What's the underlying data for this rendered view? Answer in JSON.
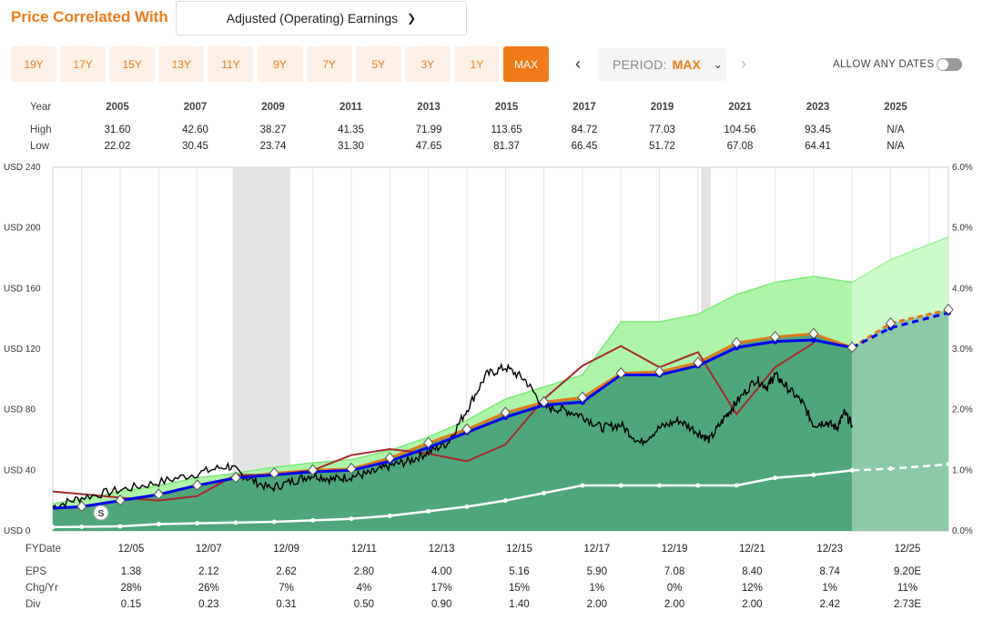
{
  "header": {
    "title": "Price Correlated With",
    "dropdown_value": "Adjusted (Operating) Earnings"
  },
  "ranges": [
    "19Y",
    "17Y",
    "15Y",
    "13Y",
    "11Y",
    "9Y",
    "7Y",
    "5Y",
    "3Y",
    "1Y",
    "MAX"
  ],
  "active_range": "MAX",
  "period": {
    "label": "PERIOD:",
    "value": "MAX"
  },
  "allow_dates": "ALLOW ANY DATES",
  "colors": {
    "accent": "#f07a19",
    "eps_green": "#4ea67a",
    "normal_pe": "#0000ee",
    "price": "#000000",
    "pe_line": "#a52a2a",
    "div_line": "#ffffff"
  },
  "top_table": {
    "year_label": "Year",
    "high_label": "High",
    "low_label": "Low",
    "years": [
      "2005",
      "2007",
      "2009",
      "2011",
      "2013",
      "2015",
      "2017",
      "2019",
      "2021",
      "2023",
      "2025"
    ],
    "high": [
      "31.60",
      "42.60",
      "38.27",
      "41.35",
      "71.99",
      "113.65",
      "84.72",
      "77.03",
      "104.56",
      "93.45",
      "N/A"
    ],
    "low": [
      "22.02",
      "30.45",
      "23.74",
      "31.30",
      "47.65",
      "81.37",
      "66.45",
      "51.72",
      "67.08",
      "64.41",
      "N/A"
    ]
  },
  "bottom_table": {
    "fy_label": "FYDate",
    "eps_label": "EPS",
    "chg_label": "Chg/Yr",
    "div_label": "Div",
    "fy": [
      "12/05",
      "12/07",
      "12/09",
      "12/11",
      "12/13",
      "12/15",
      "12/17",
      "12/19",
      "12/21",
      "12/23",
      "12/25"
    ],
    "eps": [
      "1.38",
      "2.12",
      "2.62",
      "2.80",
      "4.00",
      "5.16",
      "5.90",
      "7.08",
      "8.40",
      "8.74",
      "9.20E"
    ],
    "chg": [
      "28%",
      "26%",
      "7%",
      "4%",
      "17%",
      "15%",
      "1%",
      "0%",
      "12%",
      "1%",
      "11%"
    ],
    "div": [
      "0.15",
      "0.23",
      "0.31",
      "0.50",
      "0.90",
      "1.40",
      "2.00",
      "2.00",
      "2.00",
      "2.42",
      "2.73E"
    ]
  },
  "chart_data": {
    "type": "area",
    "title": "Price Correlated With Adjusted (Operating) Earnings",
    "y_left_ticks": [
      "USD 0",
      "USD 40",
      "USD 80",
      "USD 120",
      "USD 160",
      "USD 200",
      "USD 240"
    ],
    "y_right_ticks": [
      "0.0%",
      "1.0%",
      "2.0%",
      "3.0%",
      "4.0%",
      "5.0%",
      "6.0%"
    ],
    "ylim": [
      0,
      240
    ],
    "y2lim": [
      0,
      6
    ],
    "x_range": [
      2003.25,
      2026.5
    ],
    "recessions": [
      [
        2007.92,
        2009.42
      ],
      [
        2020.08,
        2020.33
      ]
    ],
    "estimate_start": 2024.0,
    "eps_fill": {
      "x": [
        2003.25,
        2004,
        2005,
        2006,
        2007,
        2008,
        2009,
        2010,
        2011,
        2012,
        2013,
        2014,
        2015,
        2016,
        2017,
        2018,
        2019,
        2020,
        2021,
        2022,
        2023,
        2024,
        2025,
        2026.5
      ],
      "values": [
        15,
        16,
        20,
        24,
        30,
        35,
        38,
        40,
        41,
        48,
        58,
        67,
        78,
        85,
        88,
        104,
        105,
        111,
        124,
        128,
        130,
        121,
        137,
        146
      ]
    },
    "normal_pe": {
      "x": [
        2003.25,
        2004,
        2005,
        2006,
        2007,
        2008,
        2009,
        2010,
        2011,
        2012,
        2013,
        2014,
        2015,
        2016,
        2017,
        2018,
        2019,
        2020,
        2021,
        2022,
        2023,
        2024,
        2025,
        2026.5
      ],
      "values": [
        15,
        16,
        20,
        24,
        30,
        35,
        37,
        39,
        40,
        46,
        55,
        65,
        75,
        83,
        85,
        103,
        103,
        109,
        121,
        125,
        126,
        121,
        134,
        144
      ]
    },
    "fast_graph": {
      "x": [
        2003.25,
        2004,
        2005,
        2006,
        2007,
        2008,
        2009,
        2010,
        2011,
        2012,
        2013,
        2014,
        2015,
        2016,
        2017,
        2018,
        2019,
        2020,
        2021,
        2022,
        2023,
        2024,
        2025,
        2026.5
      ],
      "values": [
        18,
        21,
        26,
        30,
        35,
        38,
        42,
        45,
        47,
        53,
        62,
        73,
        87,
        95,
        103,
        138,
        138,
        143,
        156,
        164,
        168,
        164,
        179,
        194
      ]
    },
    "pe_line": {
      "x": [
        2003.25,
        2005,
        2006,
        2007,
        2008,
        2009,
        2010,
        2011,
        2012,
        2013,
        2014,
        2015,
        2016,
        2017,
        2018,
        2019,
        2020,
        2021,
        2022,
        2023
      ],
      "values": [
        26,
        22,
        20,
        23,
        37,
        37,
        40,
        50,
        54,
        51,
        46,
        57,
        87,
        109,
        122,
        108,
        118,
        77,
        108,
        124
      ]
    },
    "dividend_yield": {
      "x": [
        2003.25,
        2004,
        2005,
        2006,
        2007,
        2008,
        2009,
        2010,
        2011,
        2012,
        2013,
        2014,
        2015,
        2016,
        2017,
        2018,
        2019,
        2020,
        2021,
        2022,
        2023,
        2024,
        2025,
        2026.5
      ],
      "values": [
        2.5,
        2.7,
        3,
        4.5,
        5,
        5.5,
        6,
        7,
        8,
        10,
        13,
        16,
        20,
        25,
        30,
        30,
        30,
        30,
        30,
        35,
        37,
        40,
        41,
        44
      ]
    },
    "price": {
      "x": [
        2003.25,
        2004,
        2005,
        2006,
        2007,
        2007.8,
        2008.3,
        2008.9,
        2009.5,
        2010,
        2010.5,
        2011,
        2011.5,
        2012,
        2012.5,
        2013,
        2013.5,
        2014,
        2014.5,
        2015,
        2015.5,
        2016,
        2016.5,
        2017,
        2017.5,
        2018,
        2018.5,
        2019,
        2019.5,
        2020,
        2020.3,
        2020.7,
        2021,
        2021.5,
        2021.8,
        2022,
        2022.3,
        2022.7,
        2023,
        2023.3,
        2023.6,
        2023.8,
        2024.0
      ],
      "values": [
        16,
        22,
        27,
        32,
        38,
        43,
        35,
        28,
        33,
        37,
        34,
        36,
        38,
        43,
        46,
        52,
        58,
        80,
        103,
        108,
        100,
        82,
        80,
        76,
        68,
        70,
        58,
        68,
        73,
        65,
        60,
        75,
        85,
        100,
        95,
        103,
        95,
        85,
        70,
        72,
        68,
        78,
        70
      ]
    },
    "markers_x": [
      2004,
      2005,
      2006,
      2007,
      2008,
      2009,
      2010,
      2011,
      2012,
      2013,
      2014,
      2015,
      2016,
      2017,
      2018,
      2019,
      2020,
      2021,
      2022,
      2023,
      2024,
      2025,
      2026.5
    ],
    "split_marker": {
      "label": "S",
      "x": 2004.5,
      "value": 12
    },
    "x_tick_labels": [
      "12/05",
      "12/07",
      "12/09",
      "12/11",
      "12/13",
      "12/15",
      "12/17",
      "12/19",
      "12/21",
      "12/23",
      "12/25"
    ]
  }
}
